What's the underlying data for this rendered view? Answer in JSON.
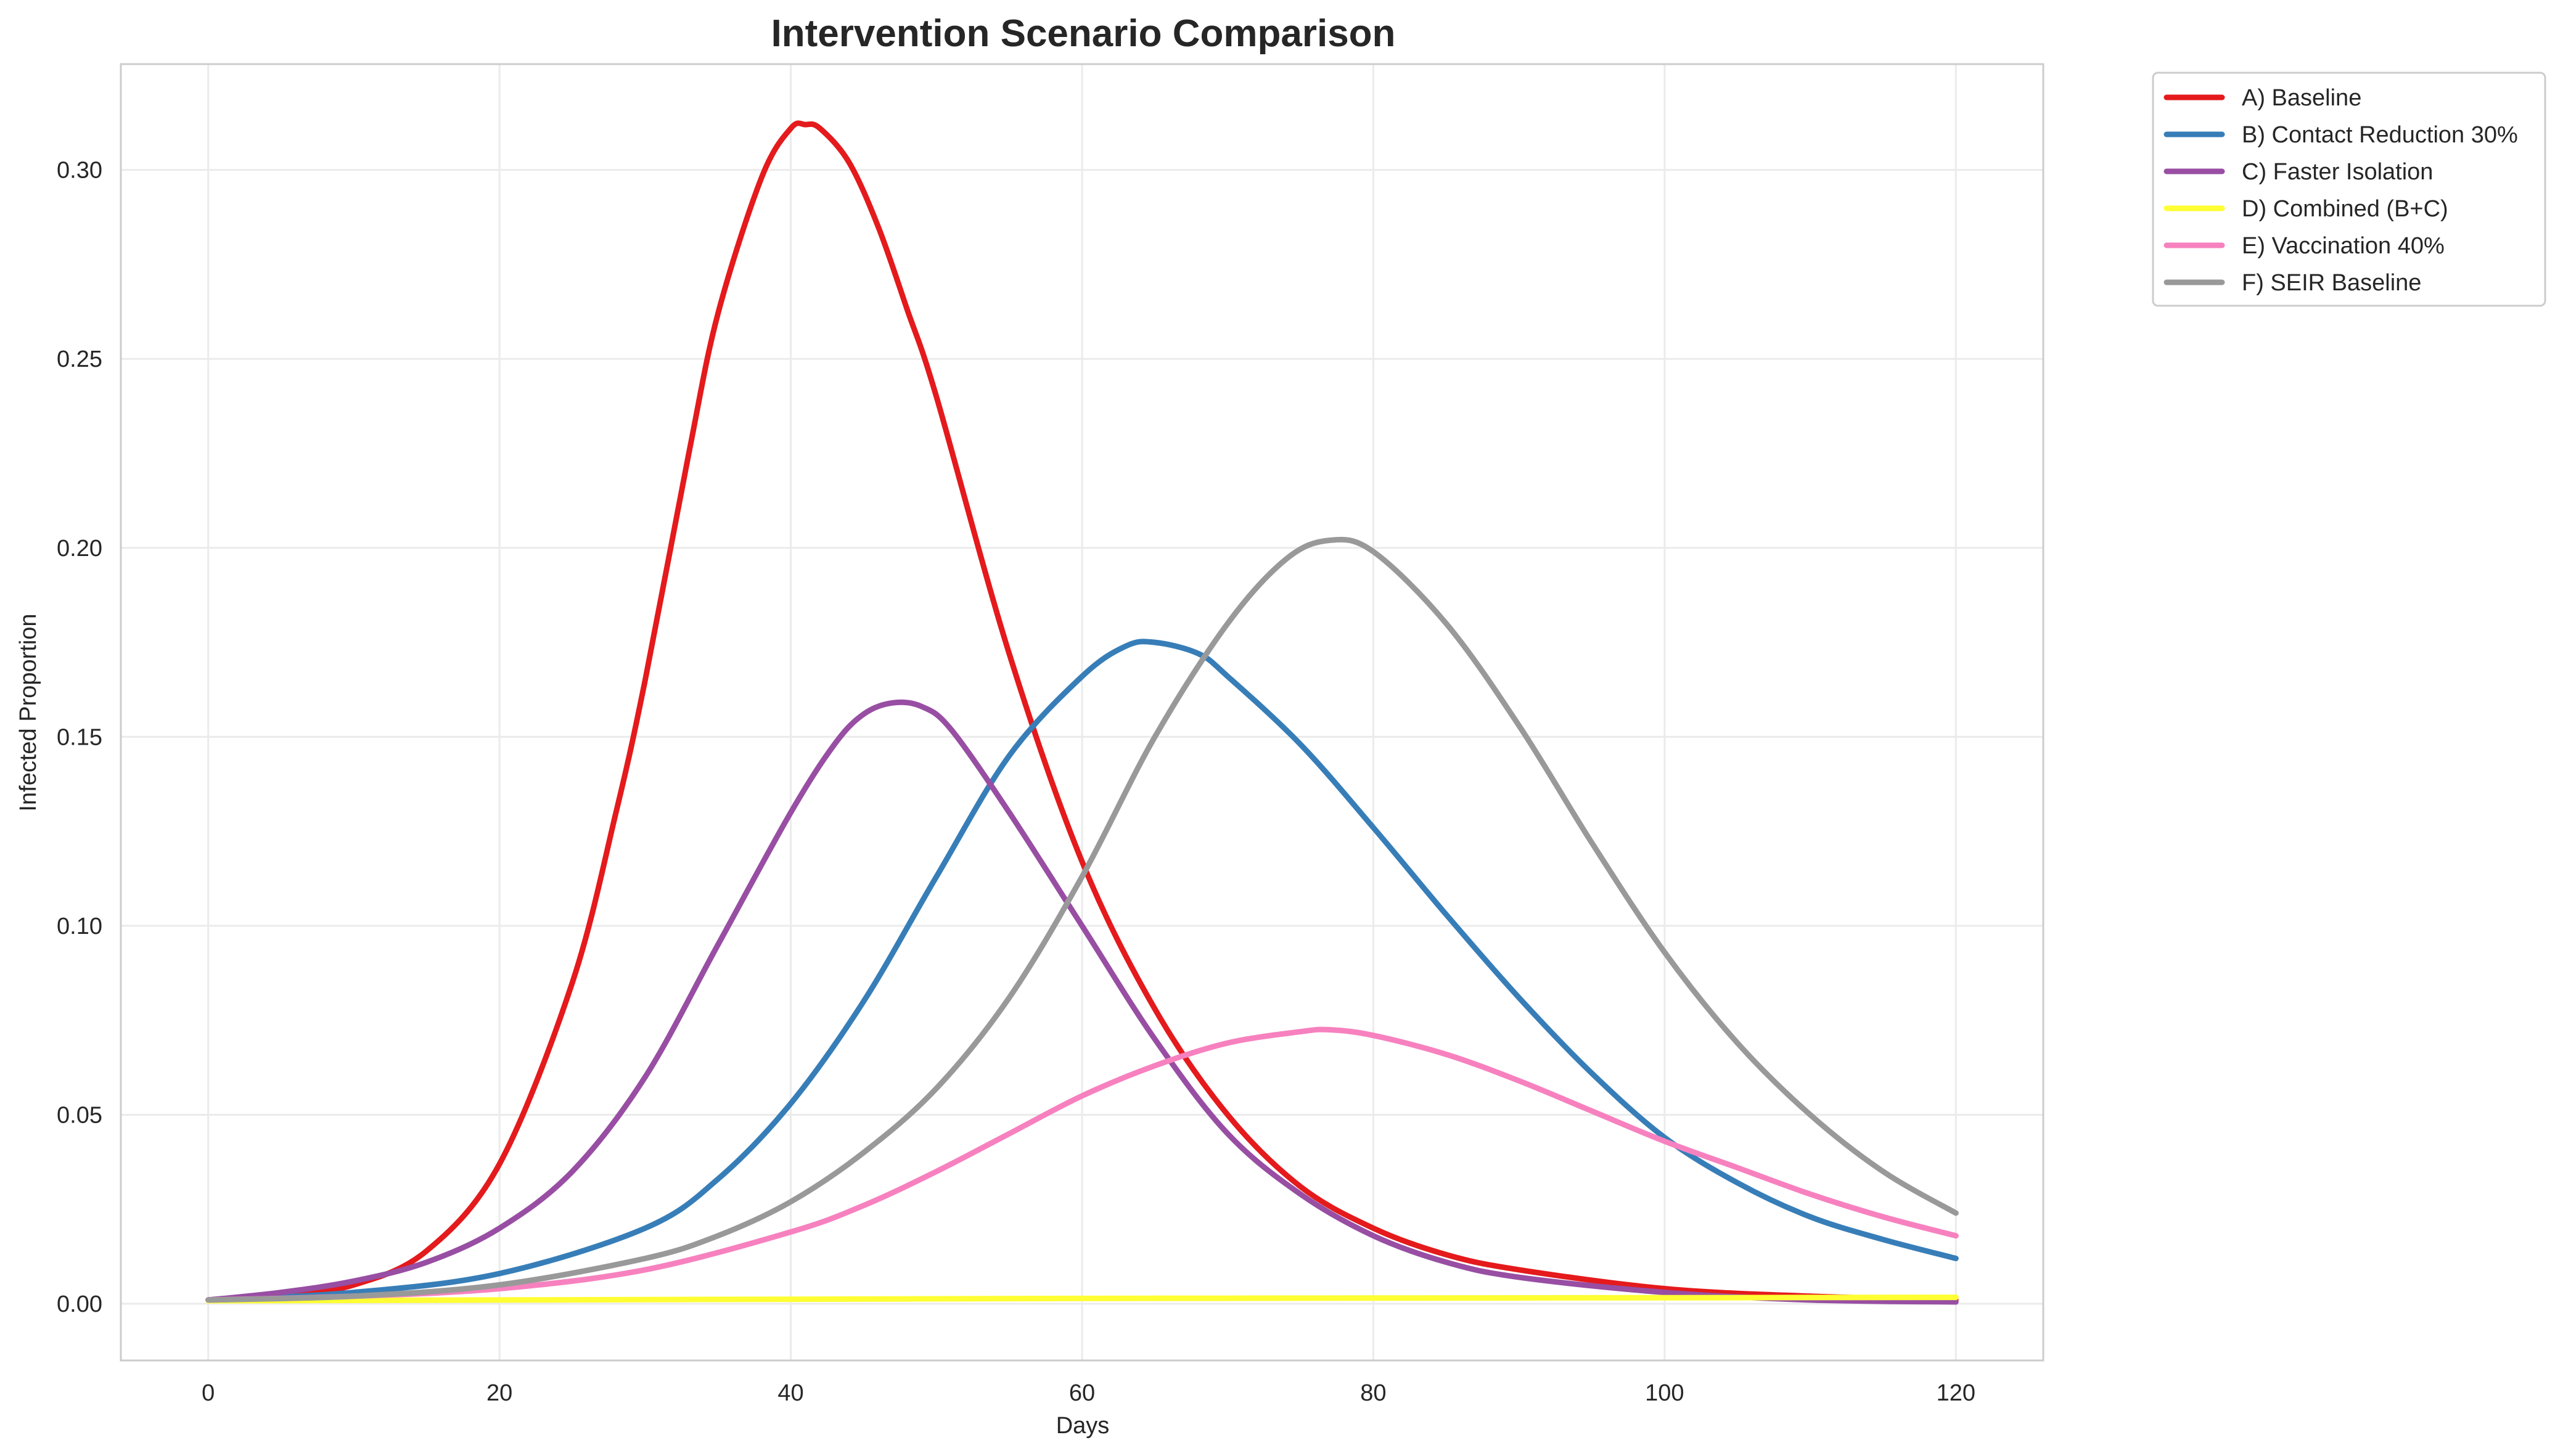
{
  "chart_data": {
    "type": "line",
    "title": "Intervention Scenario Comparison",
    "xlabel": "Days",
    "ylabel": "Infected Proportion",
    "xlim": [
      -6,
      126
    ],
    "ylim": [
      -0.015,
      0.328
    ],
    "xticks": [
      0,
      20,
      40,
      60,
      80,
      100,
      120
    ],
    "xtick_labels": [
      "0",
      "20",
      "40",
      "60",
      "80",
      "100",
      "120"
    ],
    "yticks": [
      0.0,
      0.05,
      0.1,
      0.15,
      0.2,
      0.25,
      0.3
    ],
    "ytick_labels": [
      "0.00",
      "0.05",
      "0.10",
      "0.15",
      "0.20",
      "0.25",
      "0.30"
    ],
    "grid": true,
    "legend_position": "outside-top-right",
    "series": [
      {
        "name": "A) Baseline",
        "color": "#e41a1c",
        "points": [
          [
            0,
            0.001
          ],
          [
            5,
            0.002
          ],
          [
            10,
            0.005
          ],
          [
            15,
            0.014
          ],
          [
            20,
            0.037
          ],
          [
            25,
            0.085
          ],
          [
            28,
            0.13
          ],
          [
            30,
            0.165
          ],
          [
            33,
            0.225
          ],
          [
            35,
            0.262
          ],
          [
            38,
            0.298
          ],
          [
            40,
            0.311
          ],
          [
            41,
            0.312
          ],
          [
            42,
            0.311
          ],
          [
            44,
            0.302
          ],
          [
            46,
            0.285
          ],
          [
            48,
            0.263
          ],
          [
            50,
            0.24
          ],
          [
            55,
            0.172
          ],
          [
            60,
            0.117
          ],
          [
            65,
            0.078
          ],
          [
            70,
            0.05
          ],
          [
            75,
            0.031
          ],
          [
            80,
            0.02
          ],
          [
            85,
            0.013
          ],
          [
            90,
            0.009
          ],
          [
            100,
            0.004
          ],
          [
            110,
            0.002
          ],
          [
            120,
            0.001
          ]
        ]
      },
      {
        "name": "B) Contact Reduction 30%",
        "color": "#377eb8",
        "points": [
          [
            0,
            0.001
          ],
          [
            10,
            0.003
          ],
          [
            20,
            0.008
          ],
          [
            30,
            0.02
          ],
          [
            35,
            0.033
          ],
          [
            40,
            0.053
          ],
          [
            45,
            0.08
          ],
          [
            50,
            0.113
          ],
          [
            55,
            0.145
          ],
          [
            60,
            0.166
          ],
          [
            63,
            0.174
          ],
          [
            65,
            0.175
          ],
          [
            68,
            0.172
          ],
          [
            70,
            0.166
          ],
          [
            75,
            0.148
          ],
          [
            80,
            0.126
          ],
          [
            85,
            0.103
          ],
          [
            90,
            0.081
          ],
          [
            95,
            0.061
          ],
          [
            100,
            0.044
          ],
          [
            105,
            0.032
          ],
          [
            110,
            0.023
          ],
          [
            115,
            0.017
          ],
          [
            120,
            0.012
          ]
        ]
      },
      {
        "name": "C) Faster Isolation",
        "color": "#984ea3",
        "points": [
          [
            0,
            0.001
          ],
          [
            5,
            0.003
          ],
          [
            10,
            0.006
          ],
          [
            15,
            0.011
          ],
          [
            20,
            0.02
          ],
          [
            25,
            0.035
          ],
          [
            30,
            0.06
          ],
          [
            35,
            0.095
          ],
          [
            40,
            0.13
          ],
          [
            43,
            0.148
          ],
          [
            45,
            0.156
          ],
          [
            47,
            0.159
          ],
          [
            49,
            0.158
          ],
          [
            51,
            0.152
          ],
          [
            55,
            0.13
          ],
          [
            60,
            0.1
          ],
          [
            65,
            0.07
          ],
          [
            70,
            0.045
          ],
          [
            75,
            0.029
          ],
          [
            80,
            0.018
          ],
          [
            85,
            0.011
          ],
          [
            90,
            0.007
          ],
          [
            100,
            0.003
          ],
          [
            110,
            0.001
          ],
          [
            120,
            0.0005
          ]
        ]
      },
      {
        "name": "D) Combined (B+C)",
        "color": "#ffff33",
        "points": [
          [
            0,
            0.0008
          ],
          [
            20,
            0.001
          ],
          [
            40,
            0.0012
          ],
          [
            60,
            0.0014
          ],
          [
            80,
            0.0015
          ],
          [
            100,
            0.0016
          ],
          [
            120,
            0.0017
          ]
        ]
      },
      {
        "name": "E) Vaccination 40%",
        "color": "#f781bf",
        "points": [
          [
            0,
            0.001
          ],
          [
            10,
            0.002
          ],
          [
            20,
            0.004
          ],
          [
            30,
            0.009
          ],
          [
            40,
            0.019
          ],
          [
            45,
            0.026
          ],
          [
            50,
            0.035
          ],
          [
            55,
            0.045
          ],
          [
            60,
            0.055
          ],
          [
            65,
            0.063
          ],
          [
            70,
            0.069
          ],
          [
            75,
            0.072
          ],
          [
            77,
            0.0725
          ],
          [
            80,
            0.071
          ],
          [
            85,
            0.066
          ],
          [
            90,
            0.059
          ],
          [
            95,
            0.051
          ],
          [
            100,
            0.043
          ],
          [
            105,
            0.036
          ],
          [
            110,
            0.029
          ],
          [
            115,
            0.023
          ],
          [
            120,
            0.018
          ]
        ]
      },
      {
        "name": "F) SEIR Baseline",
        "color": "#999999",
        "points": [
          [
            0,
            0.001
          ],
          [
            10,
            0.002
          ],
          [
            20,
            0.005
          ],
          [
            30,
            0.012
          ],
          [
            35,
            0.018
          ],
          [
            40,
            0.027
          ],
          [
            45,
            0.04
          ],
          [
            50,
            0.057
          ],
          [
            55,
            0.081
          ],
          [
            60,
            0.113
          ],
          [
            65,
            0.15
          ],
          [
            70,
            0.18
          ],
          [
            74,
            0.197
          ],
          [
            77,
            0.202
          ],
          [
            80,
            0.199
          ],
          [
            85,
            0.18
          ],
          [
            90,
            0.153
          ],
          [
            95,
            0.122
          ],
          [
            100,
            0.093
          ],
          [
            105,
            0.069
          ],
          [
            110,
            0.05
          ],
          [
            115,
            0.035
          ],
          [
            120,
            0.024
          ]
        ]
      }
    ]
  }
}
